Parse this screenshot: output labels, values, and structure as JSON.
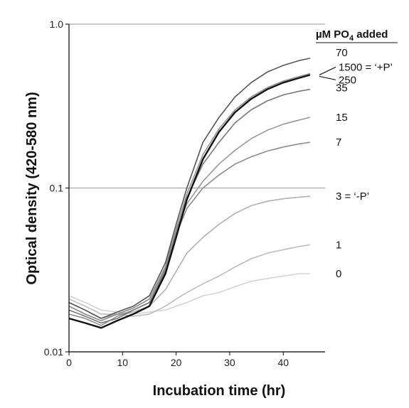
{
  "chart_data": {
    "type": "line",
    "xlabel": "Incubation time (hr)",
    "ylabel": "Optical density (420-580 nm)",
    "y_scale": "log",
    "xlim": [
      0,
      47.8
    ],
    "ylim": [
      0.01,
      1.0
    ],
    "x_ticks": [
      "0",
      "10",
      "20",
      "30",
      "40"
    ],
    "y_ticks": [
      "0.01",
      "0.1",
      "1.0"
    ],
    "grid": "horizontal line at 0.1 only",
    "legend_title": "µM PO",
    "legend_title_sub": "4",
    "legend_title_suffix": " added",
    "series": [
      {
        "name": "70",
        "color": "#555555",
        "width": 1.6,
        "points": [
          [
            0,
            0.02
          ],
          [
            3,
            0.018
          ],
          [
            6,
            0.016
          ],
          [
            9,
            0.0175
          ],
          [
            12,
            0.019
          ],
          [
            15,
            0.022
          ],
          [
            18,
            0.035
          ],
          [
            20,
            0.06
          ],
          [
            22,
            0.1
          ],
          [
            25,
            0.19
          ],
          [
            28,
            0.27
          ],
          [
            31,
            0.36
          ],
          [
            34,
            0.44
          ],
          [
            37,
            0.51
          ],
          [
            40,
            0.56
          ],
          [
            43,
            0.6
          ],
          [
            45,
            0.62
          ]
        ]
      },
      {
        "name": "1500 = ‘+P’",
        "color": "#888888",
        "width": 1.4,
        "points": [
          [
            0,
            0.019
          ],
          [
            3,
            0.017
          ],
          [
            6,
            0.0155
          ],
          [
            9,
            0.017
          ],
          [
            12,
            0.0185
          ],
          [
            15,
            0.021
          ],
          [
            18,
            0.033
          ],
          [
            20,
            0.056
          ],
          [
            22,
            0.092
          ],
          [
            25,
            0.16
          ],
          [
            28,
            0.23
          ],
          [
            31,
            0.3
          ],
          [
            34,
            0.36
          ],
          [
            37,
            0.41
          ],
          [
            40,
            0.45
          ],
          [
            43,
            0.48
          ],
          [
            45,
            0.5
          ]
        ]
      },
      {
        "name": "250",
        "color": "#111111",
        "width": 2.4,
        "points": [
          [
            0,
            0.016
          ],
          [
            3,
            0.015
          ],
          [
            6,
            0.014
          ],
          [
            9,
            0.0155
          ],
          [
            12,
            0.017
          ],
          [
            15,
            0.019
          ],
          [
            18,
            0.03
          ],
          [
            20,
            0.05
          ],
          [
            22,
            0.085
          ],
          [
            25,
            0.15
          ],
          [
            28,
            0.22
          ],
          [
            31,
            0.29
          ],
          [
            34,
            0.35
          ],
          [
            37,
            0.4
          ],
          [
            40,
            0.44
          ],
          [
            43,
            0.47
          ],
          [
            45,
            0.49
          ]
        ]
      },
      {
        "name": "35",
        "color": "#777777",
        "width": 1.6,
        "points": [
          [
            0,
            0.018
          ],
          [
            3,
            0.0165
          ],
          [
            6,
            0.015
          ],
          [
            9,
            0.016
          ],
          [
            12,
            0.018
          ],
          [
            15,
            0.02
          ],
          [
            18,
            0.031
          ],
          [
            20,
            0.052
          ],
          [
            22,
            0.087
          ],
          [
            25,
            0.14
          ],
          [
            28,
            0.19
          ],
          [
            31,
            0.25
          ],
          [
            34,
            0.3
          ],
          [
            37,
            0.34
          ],
          [
            40,
            0.37
          ],
          [
            43,
            0.39
          ],
          [
            45,
            0.4
          ]
        ]
      },
      {
        "name": "15",
        "color": "#999999",
        "width": 1.6,
        "points": [
          [
            0,
            0.019
          ],
          [
            3,
            0.017
          ],
          [
            6,
            0.0155
          ],
          [
            9,
            0.017
          ],
          [
            12,
            0.0185
          ],
          [
            15,
            0.021
          ],
          [
            18,
            0.033
          ],
          [
            20,
            0.055
          ],
          [
            22,
            0.08
          ],
          [
            25,
            0.11
          ],
          [
            28,
            0.14
          ],
          [
            31,
            0.17
          ],
          [
            34,
            0.2
          ],
          [
            37,
            0.225
          ],
          [
            40,
            0.245
          ],
          [
            43,
            0.26
          ],
          [
            45,
            0.27
          ]
        ]
      },
      {
        "name": "7",
        "color": "#8c8c8c",
        "width": 1.6,
        "points": [
          [
            0,
            0.017
          ],
          [
            3,
            0.016
          ],
          [
            6,
            0.0145
          ],
          [
            9,
            0.0165
          ],
          [
            12,
            0.018
          ],
          [
            15,
            0.02
          ],
          [
            18,
            0.032
          ],
          [
            20,
            0.052
          ],
          [
            22,
            0.075
          ],
          [
            25,
            0.1
          ],
          [
            28,
            0.12
          ],
          [
            31,
            0.14
          ],
          [
            34,
            0.155
          ],
          [
            37,
            0.168
          ],
          [
            40,
            0.178
          ],
          [
            43,
            0.186
          ],
          [
            45,
            0.19
          ]
        ]
      },
      {
        "name": "3 = ‘-P’",
        "color": "#b0b0b0",
        "width": 1.6,
        "points": [
          [
            0,
            0.02
          ],
          [
            3,
            0.018
          ],
          [
            6,
            0.016
          ],
          [
            9,
            0.017
          ],
          [
            12,
            0.0175
          ],
          [
            15,
            0.019
          ],
          [
            18,
            0.024
          ],
          [
            20,
            0.031
          ],
          [
            22,
            0.04
          ],
          [
            25,
            0.05
          ],
          [
            28,
            0.06
          ],
          [
            31,
            0.07
          ],
          [
            34,
            0.078
          ],
          [
            37,
            0.083
          ],
          [
            40,
            0.086
          ],
          [
            43,
            0.088
          ],
          [
            45,
            0.089
          ]
        ]
      },
      {
        "name": "1",
        "color": "#bdbdbd",
        "width": 1.6,
        "points": [
          [
            0,
            0.021
          ],
          [
            3,
            0.019
          ],
          [
            6,
            0.017
          ],
          [
            9,
            0.017
          ],
          [
            12,
            0.0165
          ],
          [
            15,
            0.017
          ],
          [
            18,
            0.019
          ],
          [
            20,
            0.021
          ],
          [
            22,
            0.023
          ],
          [
            25,
            0.026
          ],
          [
            28,
            0.029
          ],
          [
            31,
            0.033
          ],
          [
            34,
            0.037
          ],
          [
            37,
            0.04
          ],
          [
            40,
            0.042
          ],
          [
            43,
            0.044
          ],
          [
            45,
            0.045
          ]
        ]
      },
      {
        "name": "0",
        "color": "#d3d3d3",
        "width": 1.6,
        "points": [
          [
            0,
            0.022
          ],
          [
            3,
            0.02
          ],
          [
            6,
            0.018
          ],
          [
            9,
            0.0175
          ],
          [
            12,
            0.017
          ],
          [
            15,
            0.0175
          ],
          [
            18,
            0.018
          ],
          [
            20,
            0.019
          ],
          [
            22,
            0.02
          ],
          [
            25,
            0.022
          ],
          [
            28,
            0.023
          ],
          [
            31,
            0.025
          ],
          [
            34,
            0.027
          ],
          [
            37,
            0.028
          ],
          [
            40,
            0.029
          ],
          [
            43,
            0.03
          ],
          [
            45,
            0.03
          ]
        ]
      }
    ]
  }
}
